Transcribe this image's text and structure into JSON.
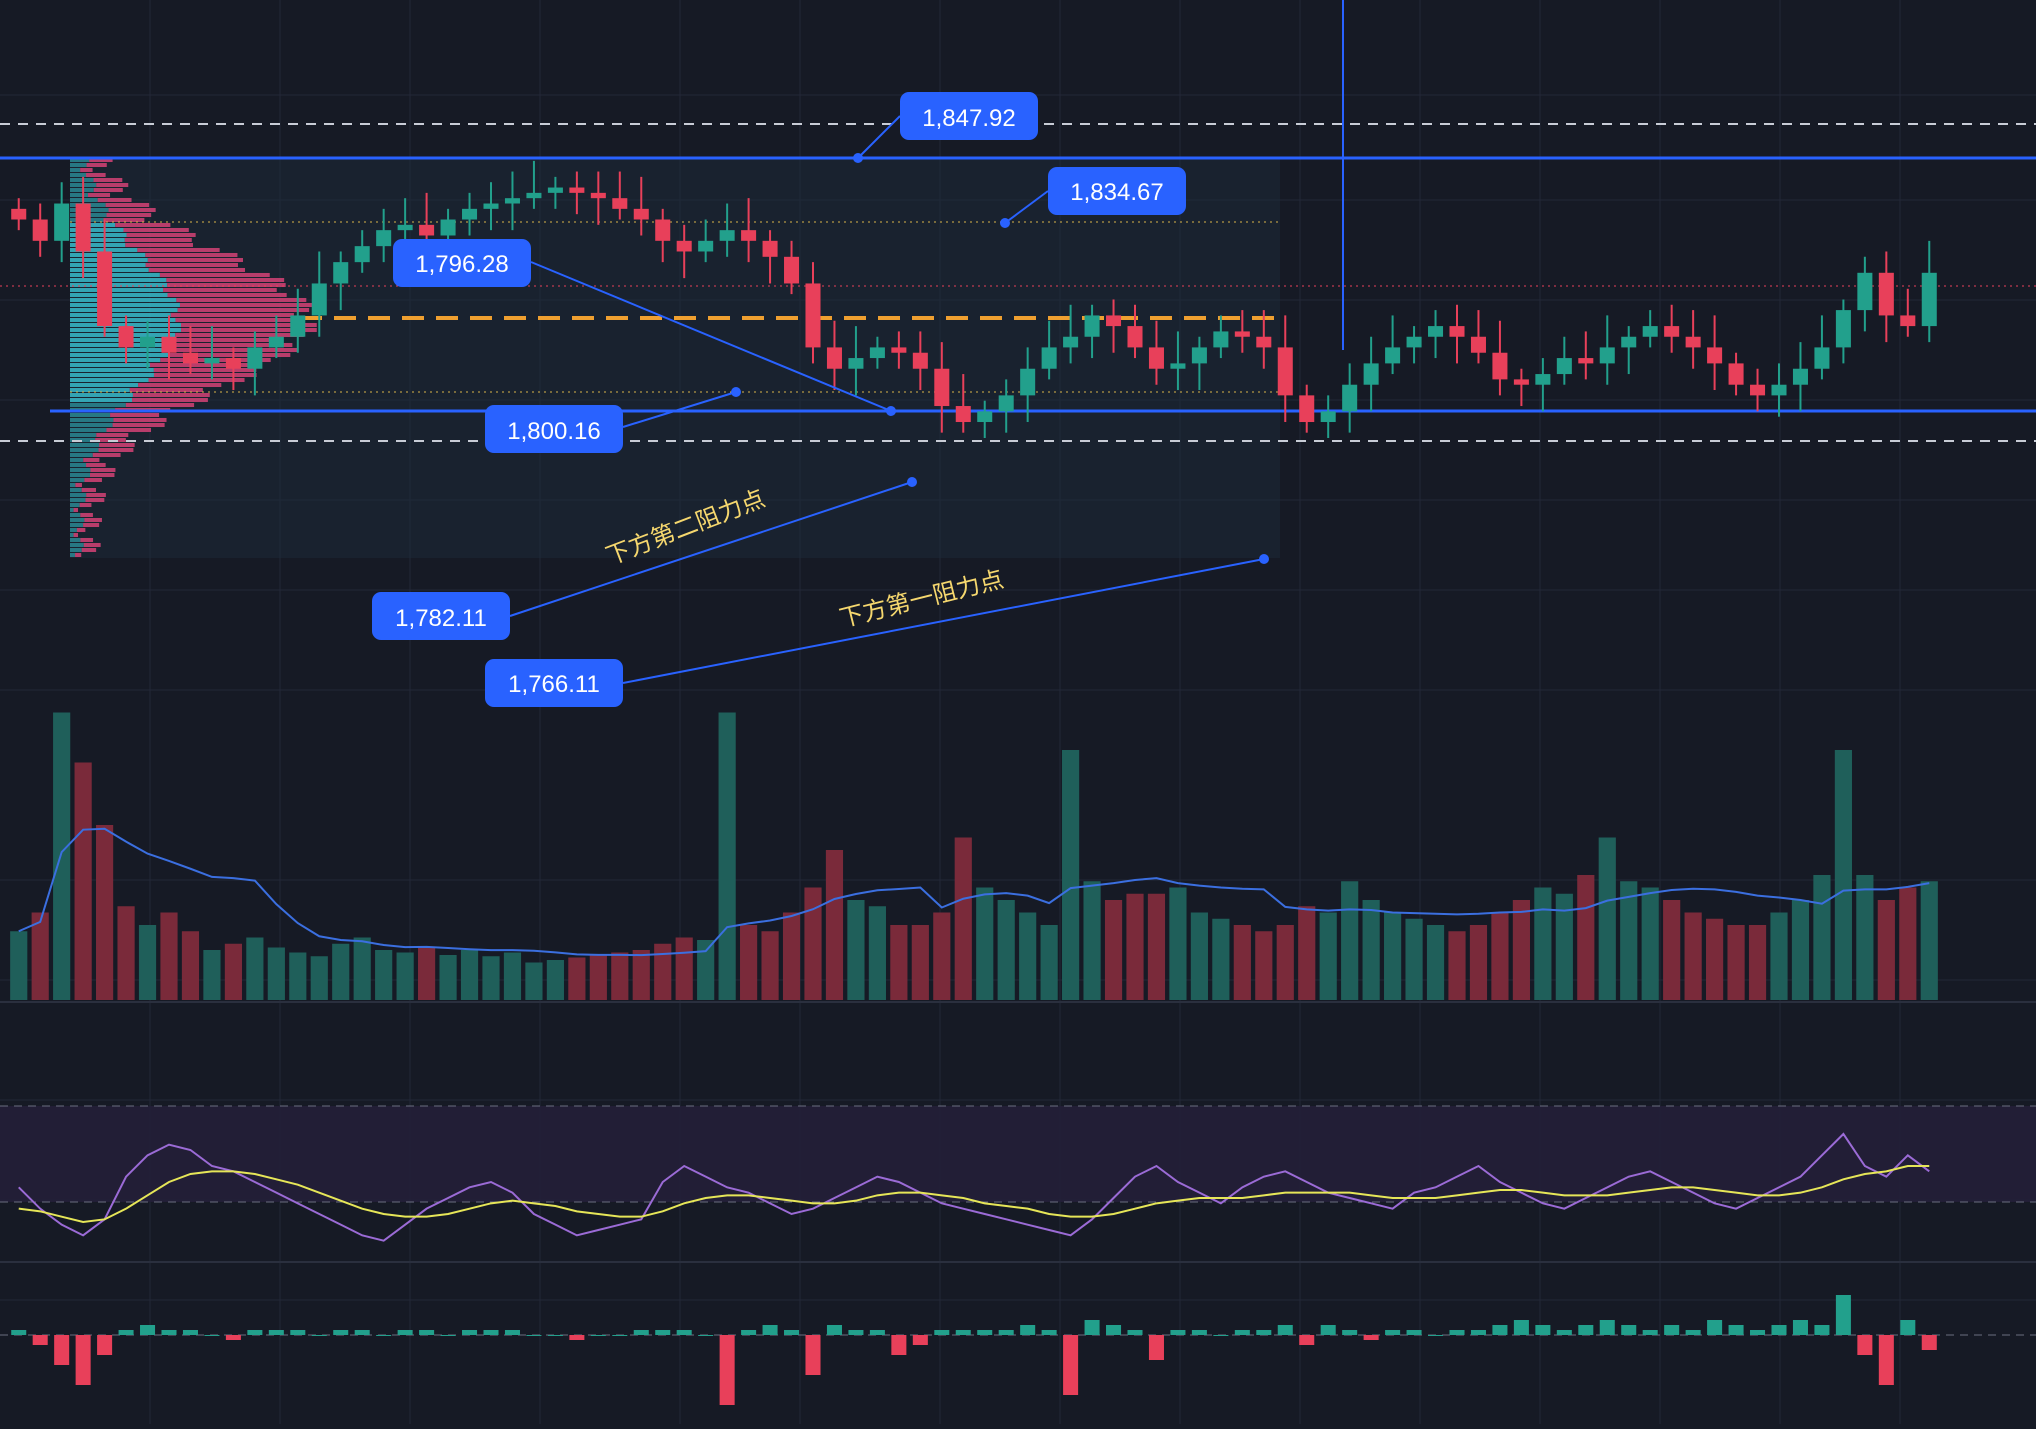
{
  "colors": {
    "background": "#161a25",
    "grid": "#232838",
    "up": "#22a08c",
    "down": "#e8405a",
    "accent_blue": "#2962ff",
    "label_bg": "#2962ff",
    "label_text": "#ffffff",
    "annotation_text": "#f5d76e",
    "poc_orange": "#f0a030",
    "value_area_cyan": "#3ac6d4",
    "value_area_pink": "#e0457a",
    "rsi_line": "#9b6bd6",
    "rsi_ma_line": "#e6e658",
    "rsi_band": "#2a2540",
    "volume_ma": "#3b6fe0",
    "dashed_white": "#c8ccd6"
  },
  "price_labels": [
    {
      "id": "top-resistance",
      "text": "1,847.92"
    },
    {
      "id": "upper-high",
      "text": "1,834.67"
    },
    {
      "id": "poc-left",
      "text": "1,796.28"
    },
    {
      "id": "mid-support",
      "text": "1,800.16"
    },
    {
      "id": "second-support",
      "text": "1,782.11"
    },
    {
      "id": "first-support",
      "text": "1,766.11"
    }
  ],
  "annotations": {
    "second_support": "下方第二阻力点",
    "first_support": "下方第一阻力点"
  },
  "chart_data": [
    {
      "type": "candlestick",
      "panel": "price",
      "series": [
        {
          "name": "close",
          "values": [
            1830,
            1826,
            1833,
            1824,
            1810,
            1806,
            1808,
            1805,
            1803,
            1804,
            1802,
            1806,
            1808,
            1812,
            1818,
            1822,
            1825,
            1828,
            1829,
            1827,
            1830,
            1832,
            1833,
            1834,
            1835,
            1836,
            1835,
            1834,
            1832,
            1830,
            1826,
            1824,
            1826,
            1828,
            1826,
            1823,
            1818,
            1806,
            1802,
            1804,
            1806,
            1805,
            1802,
            1795,
            1792,
            1794,
            1797,
            1802,
            1806,
            1808,
            1812,
            1810,
            1806,
            1802,
            1803,
            1806,
            1809,
            1808,
            1806,
            1797,
            1792,
            1794,
            1799,
            1803,
            1806,
            1808,
            1810,
            1808,
            1805,
            1800,
            1799,
            1801,
            1804,
            1803,
            1806,
            1808,
            1810,
            1808,
            1806,
            1803,
            1799,
            1797,
            1799,
            1802,
            1806,
            1813,
            1820,
            1812,
            1810,
            1820
          ]
        }
      ],
      "horizontal_levels": [
        1847.92,
        1834.67,
        1800.16,
        1796.28,
        1782.11,
        1766.11
      ],
      "notes": "Price panel with volume profile overlay on left."
    },
    {
      "type": "bar",
      "panel": "volume",
      "series": [
        {
          "name": "volume",
          "values": [
            55,
            70,
            230,
            190,
            140,
            75,
            60,
            70,
            55,
            40,
            45,
            50,
            42,
            38,
            35,
            45,
            50,
            40,
            38,
            42,
            36,
            40,
            35,
            38,
            30,
            32,
            34,
            36,
            38,
            40,
            45,
            50,
            48,
            230,
            60,
            55,
            70,
            90,
            120,
            80,
            75,
            60,
            60,
            70,
            130,
            90,
            80,
            70,
            60,
            200,
            95,
            80,
            85,
            85,
            90,
            70,
            65,
            60,
            55,
            60,
            75,
            70,
            95,
            80,
            70,
            65,
            60,
            55,
            60,
            70,
            80,
            90,
            85,
            100,
            130,
            95,
            90,
            80,
            70,
            65,
            60,
            60,
            70,
            80,
            100,
            200,
            100,
            80,
            90,
            95
          ]
        }
      ]
    },
    {
      "type": "line",
      "panel": "rsi",
      "series": [
        {
          "name": "RSI",
          "values": [
            58,
            50,
            44,
            40,
            46,
            62,
            70,
            74,
            72,
            66,
            64,
            60,
            56,
            52,
            48,
            44,
            40,
            38,
            44,
            50,
            54,
            58,
            60,
            56,
            48,
            44,
            40,
            42,
            44,
            46,
            60,
            66,
            62,
            58,
            56,
            52,
            48,
            50,
            54,
            58,
            62,
            60,
            56,
            52,
            50,
            48,
            46,
            44,
            42,
            40,
            46,
            54,
            62,
            66,
            60,
            56,
            52,
            58,
            62,
            64,
            60,
            56,
            54,
            52,
            50,
            56,
            58,
            62,
            66,
            60,
            56,
            52,
            50,
            54,
            58,
            62,
            64,
            60,
            56,
            52,
            50,
            54,
            58,
            62,
            70,
            78,
            66,
            62,
            70,
            64
          ]
        },
        {
          "name": "RSI MA",
          "values": [
            50,
            49,
            47,
            45,
            46,
            50,
            55,
            60,
            63,
            64,
            64,
            63,
            61,
            59,
            56,
            53,
            50,
            48,
            47,
            47,
            48,
            50,
            52,
            53,
            52,
            51,
            49,
            48,
            47,
            47,
            49,
            52,
            54,
            55,
            55,
            54,
            53,
            52,
            52,
            53,
            55,
            56,
            56,
            55,
            54,
            52,
            51,
            50,
            48,
            47,
            47,
            48,
            50,
            52,
            53,
            54,
            54,
            54,
            55,
            56,
            56,
            56,
            56,
            55,
            54,
            54,
            54,
            55,
            56,
            57,
            57,
            56,
            55,
            55,
            55,
            56,
            57,
            58,
            58,
            57,
            56,
            55,
            55,
            56,
            58,
            61,
            63,
            64,
            66,
            66
          ]
        }
      ]
    },
    {
      "type": "bar",
      "panel": "macd_histogram",
      "series": [
        {
          "name": "histogram",
          "values": [
            1,
            -2,
            -6,
            -10,
            -4,
            1,
            2,
            1,
            1,
            0,
            -1,
            1,
            1,
            1,
            0,
            1,
            1,
            0,
            1,
            1,
            0,
            1,
            1,
            1,
            0,
            0,
            -1,
            0,
            0,
            1,
            1,
            1,
            0,
            -14,
            1,
            2,
            1,
            -8,
            2,
            1,
            1,
            -4,
            -2,
            1,
            1,
            1,
            1,
            2,
            1,
            -12,
            3,
            2,
            1,
            -5,
            1,
            1,
            0,
            1,
            1,
            2,
            -2,
            2,
            1,
            -1,
            1,
            1,
            0,
            1,
            1,
            2,
            3,
            2,
            1,
            2,
            3,
            2,
            1,
            2,
            1,
            3,
            2,
            1,
            2,
            3,
            2,
            8,
            -4,
            -10,
            3,
            -3
          ]
        }
      ]
    }
  ]
}
